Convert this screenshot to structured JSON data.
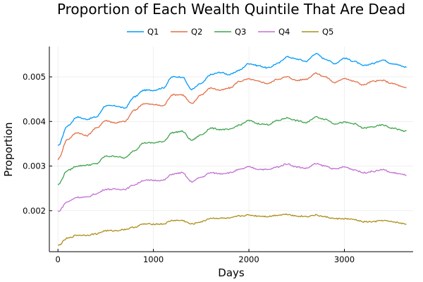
{
  "chart_data": {
    "type": "line",
    "title": "Proportion of Each Wealth Quintile That Are Dead",
    "xlabel": "Days",
    "ylabel": "Proportion",
    "xlim": [
      -90,
      3720
    ],
    "ylim": [
      0.00108,
      0.00568
    ],
    "x_ticks": [
      0,
      1000,
      2000,
      3000
    ],
    "x_tick_labels": [
      "0",
      "1000",
      "2000",
      "3000"
    ],
    "y_ticks": [
      0.002,
      0.003,
      0.004,
      0.005
    ],
    "y_tick_labels": [
      "0.002",
      "0.003",
      "0.004",
      "0.005"
    ],
    "grid": true,
    "legend_position": "top",
    "x": [
      0,
      100,
      200,
      300,
      400,
      500,
      600,
      700,
      800,
      900,
      1000,
      1100,
      1200,
      1300,
      1400,
      1500,
      1600,
      1700,
      1800,
      1900,
      2000,
      2100,
      2200,
      2300,
      2400,
      2500,
      2600,
      2700,
      2800,
      2900,
      3000,
      3100,
      3200,
      3300,
      3400,
      3500,
      3650
    ],
    "series": [
      {
        "name": "Q1",
        "color": "#009AFA",
        "values": [
          0.00345,
          0.0039,
          0.0041,
          0.00405,
          0.0041,
          0.00435,
          0.00435,
          0.0043,
          0.00455,
          0.0047,
          0.0047,
          0.00475,
          0.005,
          0.005,
          0.00472,
          0.00485,
          0.00505,
          0.0051,
          0.00505,
          0.00515,
          0.0053,
          0.00525,
          0.0052,
          0.0053,
          0.00545,
          0.0054,
          0.00535,
          0.00552,
          0.0054,
          0.0053,
          0.00542,
          0.00535,
          0.00525,
          0.0053,
          0.00538,
          0.0053,
          0.00522
        ]
      },
      {
        "name": "Q2",
        "color": "#E36F47",
        "values": [
          0.00315,
          0.0036,
          0.00375,
          0.00368,
          0.00385,
          0.00402,
          0.00397,
          0.004,
          0.00425,
          0.0044,
          0.00438,
          0.00435,
          0.0046,
          0.0046,
          0.0044,
          0.0046,
          0.00475,
          0.0047,
          0.00475,
          0.0049,
          0.00495,
          0.0049,
          0.00485,
          0.00495,
          0.005,
          0.00492,
          0.00495,
          0.00508,
          0.005,
          0.00487,
          0.00497,
          0.0049,
          0.00482,
          0.0049,
          0.00492,
          0.00485,
          0.00475
        ]
      },
      {
        "name": "Q3",
        "color": "#3EA44E",
        "values": [
          0.00258,
          0.0029,
          0.003,
          0.00302,
          0.00305,
          0.00322,
          0.00322,
          0.00318,
          0.00335,
          0.00352,
          0.00352,
          0.00355,
          0.00375,
          0.00378,
          0.00358,
          0.0037,
          0.00385,
          0.00382,
          0.00382,
          0.00392,
          0.00402,
          0.00395,
          0.00393,
          0.00402,
          0.00408,
          0.00402,
          0.00397,
          0.0041,
          0.00405,
          0.00395,
          0.00398,
          0.00395,
          0.00385,
          0.00388,
          0.00392,
          0.00385,
          0.00378
        ]
      },
      {
        "name": "Q4",
        "color": "#C270D2",
        "values": [
          0.00198,
          0.0022,
          0.0023,
          0.0023,
          0.00238,
          0.00248,
          0.00248,
          0.00248,
          0.00258,
          0.00268,
          0.00268,
          0.00268,
          0.00282,
          0.00285,
          0.00265,
          0.00275,
          0.00285,
          0.00283,
          0.00285,
          0.00292,
          0.00298,
          0.00293,
          0.00292,
          0.00298,
          0.00305,
          0.00298,
          0.00295,
          0.00305,
          0.003,
          0.00293,
          0.00298,
          0.00292,
          0.00285,
          0.00288,
          0.00292,
          0.00285,
          0.0028
        ]
      },
      {
        "name": "Q5",
        "color": "#AC8D18",
        "values": [
          0.00122,
          0.00138,
          0.00145,
          0.00145,
          0.00148,
          0.00155,
          0.00155,
          0.00158,
          0.00163,
          0.0017,
          0.0017,
          0.0017,
          0.00178,
          0.00178,
          0.0017,
          0.00175,
          0.00183,
          0.00183,
          0.00183,
          0.00188,
          0.0019,
          0.00188,
          0.00187,
          0.0019,
          0.00192,
          0.00188,
          0.00187,
          0.0019,
          0.00186,
          0.00182,
          0.00182,
          0.0018,
          0.00175,
          0.00175,
          0.00178,
          0.00175,
          0.0017
        ]
      }
    ]
  }
}
